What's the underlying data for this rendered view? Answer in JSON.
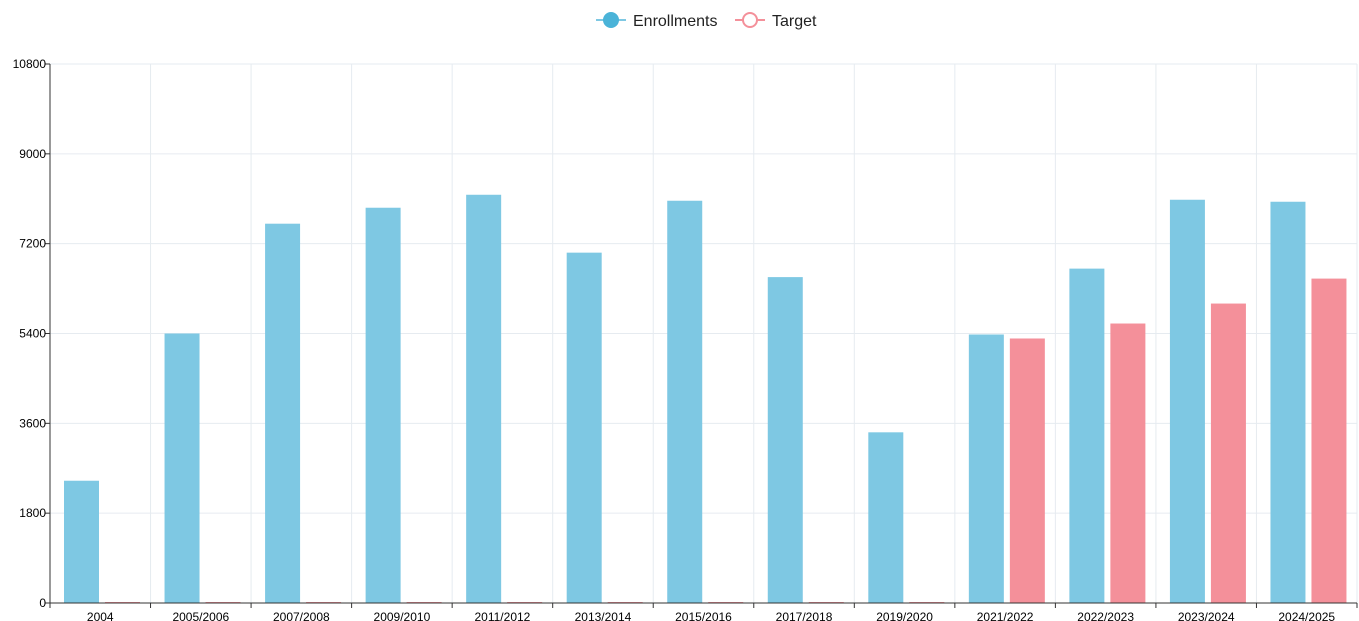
{
  "chart_data": {
    "type": "bar",
    "categories": [
      "2004",
      "2005/2006",
      "2007/2008",
      "2009/2010",
      "2011/2012",
      "2013/2014",
      "2015/2016",
      "2017/2018",
      "2019/2020",
      "2021/2022",
      "2022/2023",
      "2023/2024",
      "2024/2025"
    ],
    "series": [
      {
        "name": "Enrollments",
        "color": "#7ec8e3",
        "legend_icon": "circle-filled-line-icon",
        "values": [
          2450,
          5400,
          7600,
          7920,
          8180,
          7020,
          8060,
          6530,
          3420,
          5380,
          6700,
          8080,
          8040
        ]
      },
      {
        "name": "Target",
        "color": "#f4909a",
        "legend_icon": "circle-hollow-line-icon",
        "values": [
          0,
          0,
          0,
          0,
          0,
          0,
          0,
          0,
          0,
          5300,
          5600,
          6000,
          6500
        ]
      }
    ],
    "yticks": [
      0,
      1800,
      3600,
      5400,
      7200,
      9000,
      10800
    ],
    "ylim": [
      0,
      10800
    ],
    "grid": true,
    "legend_position": "top-center",
    "title": "",
    "xlabel": "",
    "ylabel": ""
  }
}
